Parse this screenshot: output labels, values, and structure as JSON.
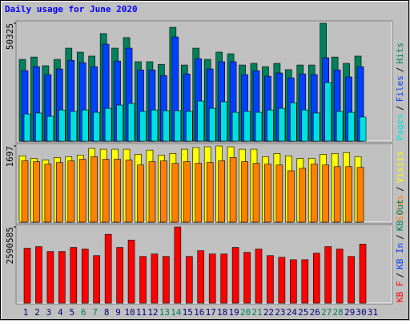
{
  "chart_data": [
    {
      "type": "bar",
      "title": "Daily usage for June 2020",
      "layout": "overlapped",
      "legend_separator": "/",
      "ylim": [
        0,
        50325
      ],
      "yticks": [
        50325
      ],
      "series": [
        {
          "name": "Hits",
          "color": "#00805c",
          "values": [
            34900,
            35900,
            32200,
            34900,
            39700,
            38000,
            36300,
            45900,
            39700,
            44200,
            33900,
            33900,
            32800,
            48600,
            32500,
            39700,
            34900,
            38000,
            37300,
            32500,
            33200,
            31800,
            33200,
            30500,
            32500,
            32500,
            50325,
            35900,
            33200,
            36300,
            null
          ]
        },
        {
          "name": "Files",
          "color": "#0040ff",
          "values": [
            30100,
            31800,
            28400,
            30800,
            34500,
            33500,
            31800,
            41400,
            34200,
            39700,
            30400,
            30400,
            28000,
            44500,
            28700,
            35200,
            30800,
            33900,
            33900,
            28400,
            30100,
            27700,
            29100,
            27000,
            28700,
            28400,
            35600,
            30400,
            27400,
            31800,
            null
          ]
        },
        {
          "name": "Pages",
          "color": "#00e0e0",
          "values": [
            11600,
            12000,
            10600,
            13300,
            12700,
            13300,
            12300,
            14000,
            15400,
            16100,
            12700,
            13300,
            13000,
            13000,
            12700,
            17100,
            14000,
            16800,
            12300,
            12700,
            12300,
            13300,
            14000,
            16400,
            13300,
            12000,
            25000,
            12700,
            12300,
            10300,
            null
          ]
        }
      ]
    },
    {
      "type": "bar",
      "layout": "overlapped",
      "ylim": [
        0,
        1697
      ],
      "yticks": [
        1697
      ],
      "series": [
        {
          "name": "Visits",
          "color": "#ffff00",
          "values": [
            1476,
            1421,
            1384,
            1439,
            1458,
            1494,
            1642,
            1624,
            1624,
            1624,
            1513,
            1605,
            1494,
            1531,
            1624,
            1661,
            1679,
            1697,
            1679,
            1624,
            1624,
            1458,
            1531,
            1476,
            1421,
            1421,
            1513,
            1531,
            1550,
            1458,
            null
          ]
        },
        {
          "name": "Sites",
          "color": "#ff8000",
          "values": [
            1365,
            1347,
            1292,
            1328,
            1365,
            1402,
            1458,
            1402,
            1402,
            1384,
            1273,
            1347,
            1365,
            1310,
            1347,
            1310,
            1328,
            1365,
            1439,
            1347,
            1310,
            1292,
            1273,
            1144,
            1199,
            1292,
            1273,
            1236,
            1236,
            1218,
            null
          ]
        }
      ]
    },
    {
      "type": "bar",
      "layout": "overlapped",
      "ylim": [
        0,
        2590585
      ],
      "yticks": [
        2590585
      ],
      "categories": [
        "1",
        "2",
        "3",
        "4",
        "5",
        "6",
        "7",
        "8",
        "9",
        "10",
        "11",
        "12",
        "13",
        "14",
        "15",
        "16",
        "17",
        "18",
        "19",
        "20",
        "21",
        "22",
        "23",
        "24",
        "25",
        "26",
        "27",
        "28",
        "29",
        "30",
        "31"
      ],
      "label_color": "#000080",
      "weekend_label_color": "#00805c",
      "weekend_indices": [
        5,
        6,
        12,
        13,
        19,
        20,
        26,
        27
      ],
      "series": [
        {
          "name": "KB Out",
          "color": "#00805c",
          "values": [
            null,
            null,
            null,
            null,
            null,
            null,
            null,
            null,
            null,
            null,
            null,
            null,
            null,
            null,
            null,
            null,
            null,
            null,
            null,
            null,
            null,
            null,
            null,
            null,
            null,
            null,
            null,
            null,
            null,
            null,
            null
          ]
        },
        {
          "name": "KB In",
          "color": "#0040ff",
          "values": [
            null,
            null,
            null,
            null,
            null,
            null,
            null,
            null,
            null,
            null,
            null,
            null,
            null,
            null,
            null,
            null,
            null,
            null,
            null,
            null,
            null,
            null,
            null,
            null,
            null,
            null,
            null,
            null,
            null,
            null,
            null
          ]
        },
        {
          "name": "KB F",
          "color": "#ff0000",
          "values": [
            1866000,
            1922000,
            1755000,
            1755000,
            1894000,
            1839000,
            1616000,
            2340000,
            1894000,
            2145000,
            1588000,
            1671000,
            1588000,
            2590585,
            1588000,
            1783000,
            1671000,
            1671000,
            1894000,
            1727000,
            1839000,
            1616000,
            1560000,
            1476000,
            1476000,
            1699000,
            1922000,
            1839000,
            1588000,
            2006000,
            null
          ]
        }
      ]
    }
  ]
}
